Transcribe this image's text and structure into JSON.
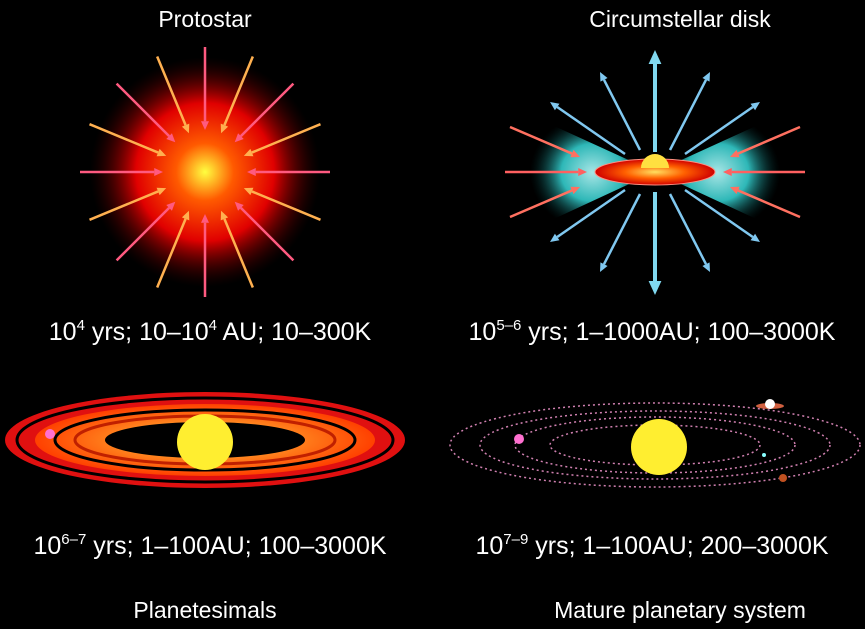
{
  "panels": [
    {
      "title": "Protostar",
      "caption": [
        "10",
        "4",
        " yrs; 10–10",
        "4",
        " AU; 10–300K"
      ]
    },
    {
      "title": "Circumstellar disk",
      "caption": [
        "10",
        "5–6",
        " yrs; 1–1000AU; 100–3000K"
      ]
    },
    {
      "title": "Planetesimals",
      "caption": [
        "10",
        "6–7",
        " yrs; 1–100AU; 100–3000K"
      ]
    },
    {
      "title": "Mature planetary system",
      "caption": [
        "10",
        "7–9",
        " yrs; 1–100AU; 200–3000K"
      ]
    }
  ]
}
